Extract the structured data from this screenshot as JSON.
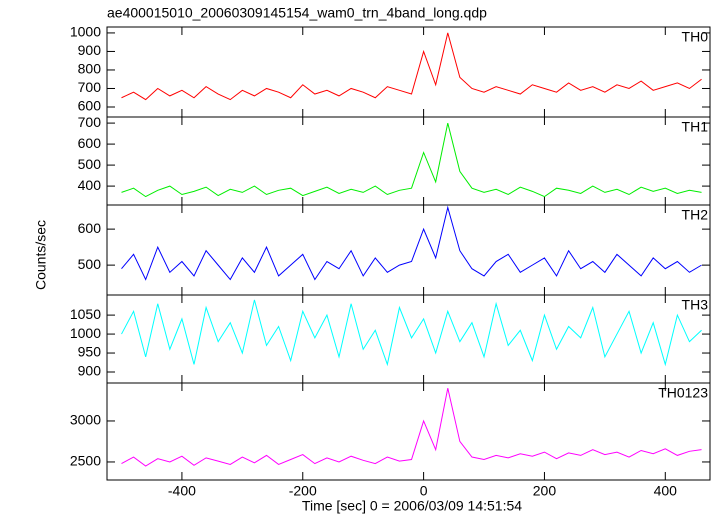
{
  "figure": {
    "title": "ae400015010_20060309145154_wam0_trn_4band_long.qdp",
    "y_label": "Counts/sec",
    "x_label": "Time [sec] 0 = 2006/03/09 14:51:54"
  },
  "chart_data": [
    {
      "type": "line",
      "x": [
        -500,
        -480,
        -460,
        -440,
        -420,
        -400,
        -380,
        -360,
        -340,
        -320,
        -300,
        -280,
        -260,
        -240,
        -220,
        -200,
        -180,
        -160,
        -140,
        -120,
        -100,
        -80,
        -60,
        -40,
        -20,
        0,
        20,
        40,
        60,
        80,
        100,
        120,
        140,
        160,
        180,
        200,
        220,
        240,
        260,
        280,
        300,
        320,
        340,
        360,
        380,
        400,
        420,
        440,
        460
      ],
      "series": [
        {
          "name": "TH0",
          "color": "#ff0000",
          "values": [
            650,
            680,
            640,
            700,
            660,
            690,
            650,
            710,
            670,
            640,
            690,
            660,
            700,
            680,
            650,
            720,
            670,
            690,
            660,
            700,
            680,
            650,
            710,
            690,
            670,
            900,
            720,
            1000,
            760,
            700,
            680,
            710,
            690,
            670,
            720,
            700,
            680,
            730,
            690,
            710,
            680,
            720,
            700,
            740,
            690,
            710,
            730,
            700,
            750
          ]
        }
      ],
      "xlim": [
        -524,
        474
      ],
      "ylim": [
        546,
        1032
      ],
      "yticks": [
        600,
        700,
        800,
        900,
        1000
      ]
    },
    {
      "type": "line",
      "x": [
        -500,
        -480,
        -460,
        -440,
        -420,
        -400,
        -380,
        -360,
        -340,
        -320,
        -300,
        -280,
        -260,
        -240,
        -220,
        -200,
        -180,
        -160,
        -140,
        -120,
        -100,
        -80,
        -60,
        -40,
        -20,
        0,
        20,
        40,
        60,
        80,
        100,
        120,
        140,
        160,
        180,
        200,
        220,
        240,
        260,
        280,
        300,
        320,
        340,
        360,
        380,
        400,
        420,
        440,
        460
      ],
      "series": [
        {
          "name": "TH1",
          "color": "#00ee00",
          "values": [
            370,
            390,
            350,
            380,
            400,
            360,
            375,
            395,
            355,
            385,
            370,
            400,
            360,
            380,
            390,
            355,
            375,
            395,
            365,
            385,
            370,
            400,
            360,
            380,
            390,
            560,
            420,
            700,
            470,
            390,
            370,
            385,
            360,
            395,
            375,
            350,
            390,
            380,
            365,
            400,
            370,
            385,
            360,
            395,
            375,
            390,
            365,
            380,
            370
          ]
        }
      ],
      "xlim": [
        -524,
        474
      ],
      "ylim": [
        310,
        729
      ],
      "yticks": [
        400,
        500,
        600,
        700
      ]
    },
    {
      "type": "line",
      "x": [
        -500,
        -480,
        -460,
        -440,
        -420,
        -400,
        -380,
        -360,
        -340,
        -320,
        -300,
        -280,
        -260,
        -240,
        -220,
        -200,
        -180,
        -160,
        -140,
        -120,
        -100,
        -80,
        -60,
        -40,
        -20,
        0,
        20,
        40,
        60,
        80,
        100,
        120,
        140,
        160,
        180,
        200,
        220,
        240,
        260,
        280,
        300,
        320,
        340,
        360,
        380,
        400,
        420,
        440,
        460
      ],
      "series": [
        {
          "name": "TH2",
          "color": "#0000ff",
          "values": [
            490,
            530,
            460,
            550,
            480,
            510,
            470,
            540,
            500,
            460,
            520,
            480,
            550,
            470,
            500,
            530,
            460,
            510,
            490,
            540,
            470,
            520,
            480,
            500,
            510,
            600,
            520,
            660,
            540,
            490,
            470,
            510,
            530,
            480,
            500,
            520,
            470,
            540,
            490,
            510,
            480,
            530,
            500,
            470,
            520,
            490,
            510,
            480,
            500
          ]
        }
      ],
      "xlim": [
        -524,
        474
      ],
      "ylim": [
        417,
        667
      ],
      "yticks": [
        500,
        600
      ]
    },
    {
      "type": "line",
      "x": [
        -500,
        -480,
        -460,
        -440,
        -420,
        -400,
        -380,
        -360,
        -340,
        -320,
        -300,
        -280,
        -260,
        -240,
        -220,
        -200,
        -180,
        -160,
        -140,
        -120,
        -100,
        -80,
        -60,
        -40,
        -20,
        0,
        20,
        40,
        60,
        80,
        100,
        120,
        140,
        160,
        180,
        200,
        220,
        240,
        260,
        280,
        300,
        320,
        340,
        360,
        380,
        400,
        420,
        440,
        460
      ],
      "series": [
        {
          "name": "TH3",
          "color": "#00ffff",
          "values": [
            1000,
            1060,
            940,
            1080,
            960,
            1040,
            920,
            1070,
            980,
            1030,
            950,
            1090,
            970,
            1020,
            930,
            1060,
            990,
            1050,
            940,
            1080,
            960,
            1010,
            920,
            1070,
            990,
            1040,
            950,
            1060,
            980,
            1030,
            940,
            1080,
            970,
            1010,
            930,
            1050,
            960,
            1020,
            990,
            1070,
            940,
            1000,
            1060,
            950,
            1030,
            920,
            1050,
            980,
            1010
          ]
        }
      ],
      "xlim": [
        -524,
        474
      ],
      "ylim": [
        871,
        1103
      ],
      "yticks": [
        900,
        950,
        1000,
        1050
      ]
    },
    {
      "type": "line",
      "x": [
        -500,
        -480,
        -460,
        -440,
        -420,
        -400,
        -380,
        -360,
        -340,
        -320,
        -300,
        -280,
        -260,
        -240,
        -220,
        -200,
        -180,
        -160,
        -140,
        -120,
        -100,
        -80,
        -60,
        -40,
        -20,
        0,
        20,
        40,
        60,
        80,
        100,
        120,
        140,
        160,
        180,
        200,
        220,
        240,
        260,
        280,
        300,
        320,
        340,
        360,
        380,
        400,
        420,
        440,
        460
      ],
      "series": [
        {
          "name": "TH0123",
          "color": "#ff00ff",
          "values": [
            2480,
            2560,
            2450,
            2540,
            2500,
            2570,
            2460,
            2550,
            2510,
            2470,
            2560,
            2490,
            2580,
            2470,
            2530,
            2590,
            2480,
            2550,
            2500,
            2570,
            2520,
            2480,
            2560,
            2510,
            2530,
            3000,
            2650,
            3400,
            2750,
            2560,
            2530,
            2580,
            2550,
            2600,
            2570,
            2620,
            2540,
            2610,
            2580,
            2650,
            2590,
            2620,
            2560,
            2640,
            2600,
            2660,
            2580,
            2630,
            2650
          ]
        }
      ],
      "xlim": [
        -524,
        474
      ],
      "ylim": [
        2280,
        3463
      ],
      "yticks": [
        2500,
        3000
      ],
      "xticks": [
        -400,
        -200,
        0,
        200,
        400
      ]
    }
  ]
}
